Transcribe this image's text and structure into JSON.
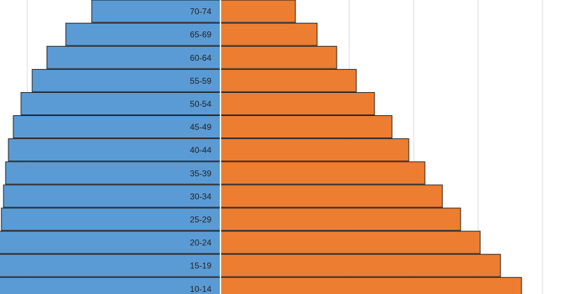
{
  "chart_data": {
    "type": "bar",
    "orientation": "horizontal",
    "layout": "population-pyramid",
    "title": "",
    "xlabel": "",
    "ylabel": "",
    "grid": true,
    "categories": [
      "70-74",
      "65-69",
      "60-64",
      "55-59",
      "50-54",
      "45-49",
      "40-44",
      "35-39",
      "30-34",
      "25-29",
      "20-24",
      "15-19",
      "10-14"
    ],
    "series": [
      {
        "side": "left",
        "color": "#5B9BD5",
        "values": [
          184,
          221,
          248,
          269,
          285,
          296,
          303,
          307,
          310,
          313,
          316,
          317,
          318
        ]
      },
      {
        "side": "right",
        "color": "#ED7D31",
        "values": [
          107,
          138,
          166,
          194,
          220,
          245,
          269,
          292,
          317,
          343,
          371,
          400,
          430
        ]
      }
    ],
    "xlim": [
      -315,
      525
    ],
    "gridlines": [
      -276,
      184,
      276,
      368,
      460
    ]
  }
}
